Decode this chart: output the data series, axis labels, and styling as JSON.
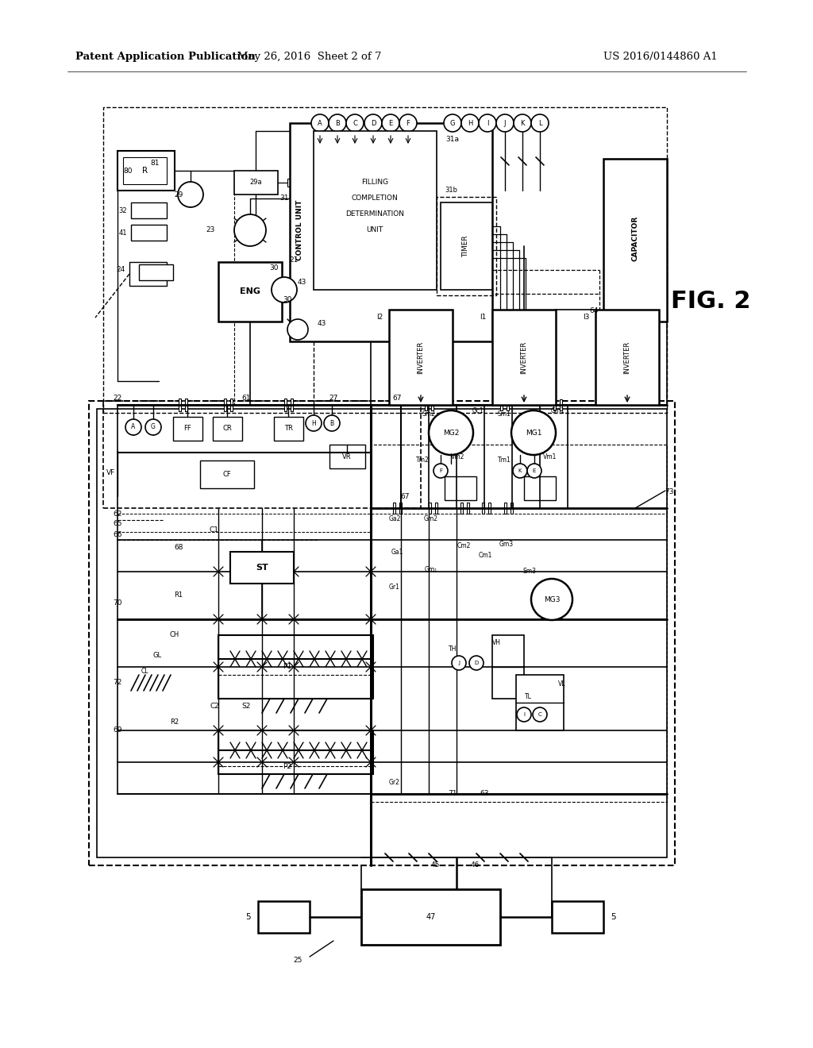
{
  "bg_color": "#ffffff",
  "line_color": "#000000",
  "header_text": "Patent Application Publication",
  "header_date": "May 26, 2016  Sheet 2 of 7",
  "header_patent": "US 2016/0144860 A1",
  "fig_label": "FIG. 2"
}
